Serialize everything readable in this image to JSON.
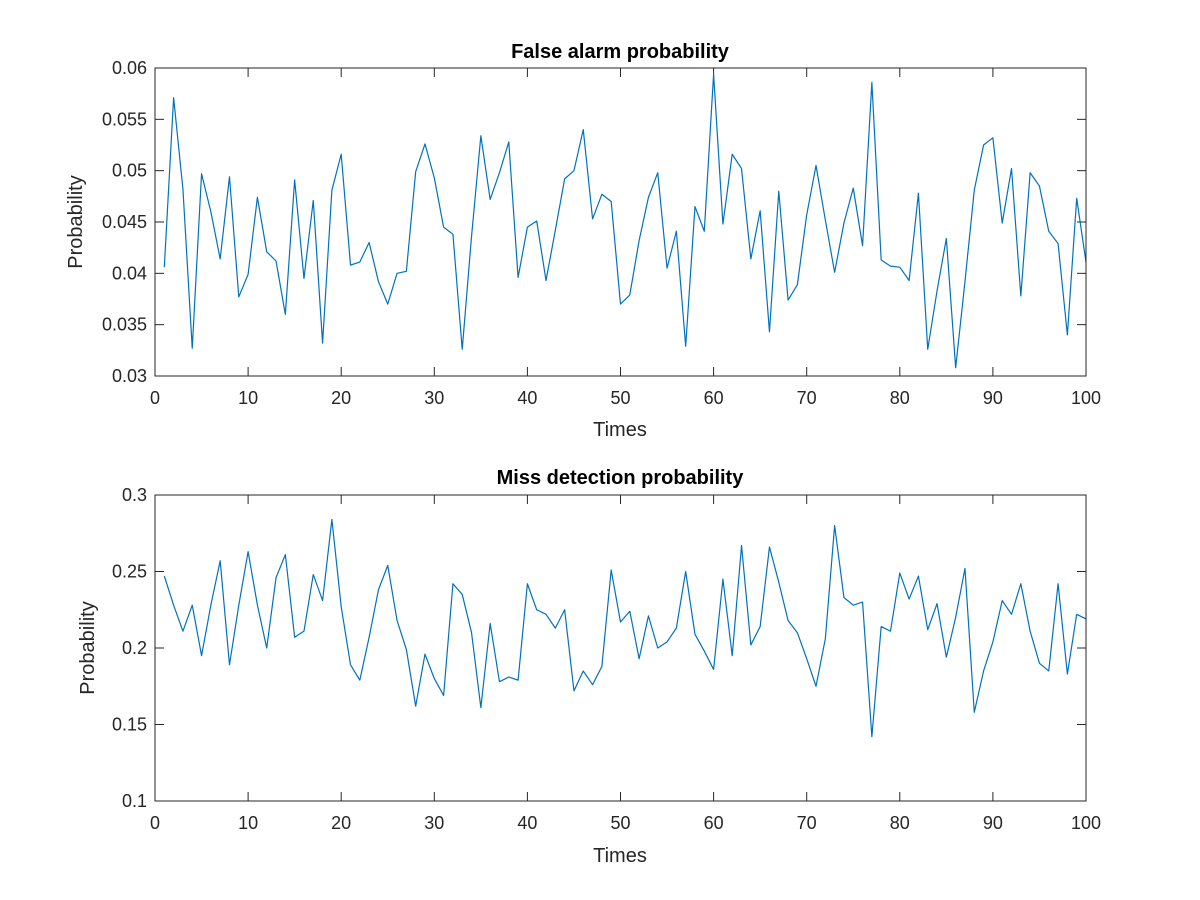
{
  "figure": {
    "background": "#ffffff",
    "axis_color": "#262626",
    "line_color": "#0072BD"
  },
  "chart_data": [
    {
      "type": "line",
      "title": "False alarm probability",
      "xlabel": "Times",
      "ylabel": "Probability",
      "xlim": [
        0,
        100
      ],
      "ylim": [
        0.03,
        0.06
      ],
      "xticks": [
        "0",
        "10",
        "20",
        "30",
        "40",
        "50",
        "60",
        "70",
        "80",
        "90",
        "100"
      ],
      "yticks": [
        "0.03",
        "0.035",
        "0.04",
        "0.045",
        "0.05",
        "0.055",
        "0.06"
      ],
      "grid": false,
      "legend": "none",
      "x": [
        1,
        2,
        3,
        4,
        5,
        6,
        7,
        8,
        9,
        10,
        11,
        12,
        13,
        14,
        15,
        16,
        17,
        18,
        19,
        20,
        21,
        22,
        23,
        24,
        25,
        26,
        27,
        28,
        29,
        30,
        31,
        32,
        33,
        34,
        35,
        36,
        37,
        38,
        39,
        40,
        41,
        42,
        43,
        44,
        45,
        46,
        47,
        48,
        49,
        50,
        51,
        52,
        53,
        54,
        55,
        56,
        57,
        58,
        59,
        60,
        61,
        62,
        63,
        64,
        65,
        66,
        67,
        68,
        69,
        70,
        71,
        72,
        73,
        74,
        75,
        76,
        77,
        78,
        79,
        80,
        81,
        82,
        83,
        84,
        85,
        86,
        87,
        88,
        89,
        90,
        91,
        92,
        93,
        94,
        95,
        96,
        97,
        98,
        99,
        100
      ],
      "series": [
        {
          "values": [
            0.0406,
            0.0571,
            0.0482,
            0.0327,
            0.0497,
            0.046,
            0.0414,
            0.0494,
            0.0377,
            0.0399,
            0.0474,
            0.0421,
            0.0412,
            0.036,
            0.0491,
            0.0395,
            0.0471,
            0.0332,
            0.0481,
            0.0516,
            0.0408,
            0.0411,
            0.043,
            0.0392,
            0.037,
            0.04,
            0.0402,
            0.0499,
            0.0526,
            0.0493,
            0.0445,
            0.0438,
            0.0326,
            0.0436,
            0.0534,
            0.0472,
            0.0498,
            0.0528,
            0.0396,
            0.0445,
            0.0451,
            0.0393,
            0.0442,
            0.0492,
            0.05,
            0.054,
            0.0453,
            0.0477,
            0.047,
            0.037,
            0.0379,
            0.0432,
            0.0474,
            0.0498,
            0.0405,
            0.0441,
            0.0329,
            0.0465,
            0.0441,
            0.0594,
            0.0448,
            0.0516,
            0.0502,
            0.0414,
            0.0461,
            0.0343,
            0.048,
            0.0374,
            0.0389,
            0.0457,
            0.0505,
            0.0452,
            0.0401,
            0.0449,
            0.0483,
            0.0427,
            0.0586,
            0.0413,
            0.0407,
            0.0406,
            0.0393,
            0.0478,
            0.0326,
            0.0383,
            0.0434,
            0.0308,
            0.0392,
            0.0481,
            0.0525,
            0.0532,
            0.0449,
            0.0502,
            0.0378,
            0.0498,
            0.0485,
            0.0441,
            0.0429,
            0.034,
            0.0473,
            0.0411
          ]
        }
      ]
    },
    {
      "type": "line",
      "title": "Miss detection probability",
      "xlabel": "Times",
      "ylabel": "Probability",
      "xlim": [
        0,
        100
      ],
      "ylim": [
        0.1,
        0.3
      ],
      "xticks": [
        "0",
        "10",
        "20",
        "30",
        "40",
        "50",
        "60",
        "70",
        "80",
        "90",
        "100"
      ],
      "yticks": [
        "0.1",
        "0.15",
        "0.2",
        "0.25",
        "0.3"
      ],
      "grid": false,
      "legend": "none",
      "x": [
        1,
        2,
        3,
        4,
        5,
        6,
        7,
        8,
        9,
        10,
        11,
        12,
        13,
        14,
        15,
        16,
        17,
        18,
        19,
        20,
        21,
        22,
        23,
        24,
        25,
        26,
        27,
        28,
        29,
        30,
        31,
        32,
        33,
        34,
        35,
        36,
        37,
        38,
        39,
        40,
        41,
        42,
        43,
        44,
        45,
        46,
        47,
        48,
        49,
        50,
        51,
        52,
        53,
        54,
        55,
        56,
        57,
        58,
        59,
        60,
        61,
        62,
        63,
        64,
        65,
        66,
        67,
        68,
        69,
        70,
        71,
        72,
        73,
        74,
        75,
        76,
        77,
        78,
        79,
        80,
        81,
        82,
        83,
        84,
        85,
        86,
        87,
        88,
        89,
        90,
        91,
        92,
        93,
        94,
        95,
        96,
        97,
        98,
        99,
        100
      ],
      "series": [
        {
          "values": [
            0.247,
            0.228,
            0.211,
            0.228,
            0.195,
            0.228,
            0.257,
            0.189,
            0.228,
            0.263,
            0.228,
            0.2,
            0.246,
            0.261,
            0.207,
            0.211,
            0.248,
            0.231,
            0.284,
            0.227,
            0.189,
            0.179,
            0.207,
            0.238,
            0.254,
            0.218,
            0.199,
            0.162,
            0.196,
            0.18,
            0.169,
            0.242,
            0.235,
            0.21,
            0.161,
            0.216,
            0.178,
            0.181,
            0.179,
            0.242,
            0.225,
            0.222,
            0.213,
            0.225,
            0.172,
            0.185,
            0.176,
            0.188,
            0.251,
            0.217,
            0.224,
            0.193,
            0.221,
            0.2,
            0.204,
            0.213,
            0.25,
            0.209,
            0.198,
            0.186,
            0.245,
            0.195,
            0.267,
            0.202,
            0.214,
            0.266,
            0.243,
            0.218,
            0.21,
            0.193,
            0.175,
            0.206,
            0.28,
            0.233,
            0.228,
            0.23,
            0.142,
            0.214,
            0.211,
            0.249,
            0.232,
            0.247,
            0.212,
            0.229,
            0.194,
            0.22,
            0.252,
            0.158,
            0.185,
            0.204,
            0.231,
            0.222,
            0.242,
            0.211,
            0.19,
            0.185,
            0.242,
            0.183,
            0.222,
            0.219
          ]
        }
      ]
    }
  ]
}
